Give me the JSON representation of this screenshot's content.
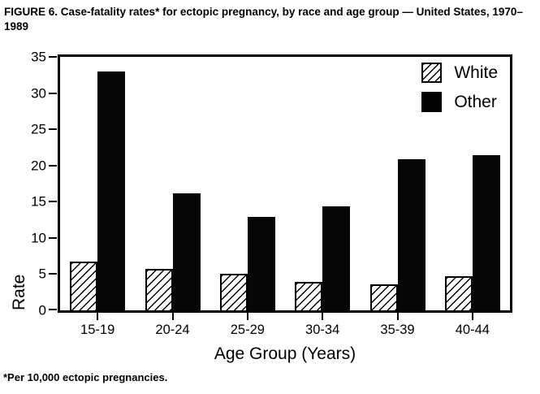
{
  "figure": {
    "title": "FIGURE 6. Case-fatality rates* for ectopic pregnancy, by race and age group — United States, 1970–1989",
    "footnote": "*Per 10,000 ectopic pregnancies."
  },
  "chart_data": {
    "type": "bar",
    "title": "Case-fatality rates for ectopic pregnancy, by race and age group — United States, 1970–1989",
    "categories": [
      "15-19",
      "20-24",
      "25-29",
      "30-34",
      "35-39",
      "40-44"
    ],
    "series": [
      {
        "name": "White",
        "style": "hatched",
        "values": [
          6.7,
          5.7,
          5.0,
          3.9,
          3.6,
          4.7
        ]
      },
      {
        "name": "Other",
        "style": "solid",
        "values": [
          33.0,
          16.2,
          12.9,
          14.4,
          20.9,
          21.4
        ]
      }
    ],
    "xlabel": "Age Group (Years)",
    "ylabel": "Rate",
    "ylim": [
      0,
      35
    ],
    "yticks": [
      0,
      5,
      10,
      15,
      20,
      25,
      30,
      35
    ],
    "grid": false,
    "legend_position": "top-right",
    "colors": {
      "bar_fill": "#060606",
      "hatch_line": "#000000",
      "background": "#ffffff",
      "frame": "#000000"
    }
  }
}
